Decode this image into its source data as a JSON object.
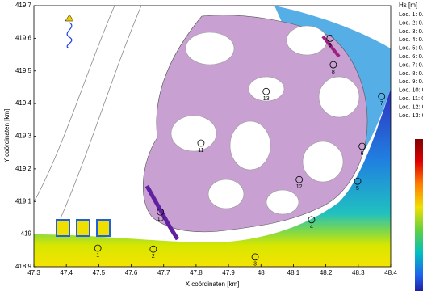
{
  "axes": {
    "xlabel": "X coördinaten [km]",
    "ylabel": "Y coördinaten [km]",
    "xlim": [
      47.3,
      48.4
    ],
    "ylim": [
      418.9,
      419.7
    ],
    "xticks": [
      47.3,
      47.4,
      47.5,
      47.6,
      47.7,
      47.8,
      47.9,
      48,
      48.1,
      48.2,
      48.3,
      48.4
    ],
    "yticks": [
      418.9,
      419,
      419.1,
      419.2,
      419.3,
      419.4,
      419.5,
      419.6,
      419.7
    ]
  },
  "locations": [
    {
      "label": "1",
      "x": 47.497,
      "y": 418.957
    },
    {
      "label": "2",
      "x": 47.668,
      "y": 418.954
    },
    {
      "label": "3",
      "x": 47.982,
      "y": 418.93
    },
    {
      "label": "4",
      "x": 48.156,
      "y": 419.044
    },
    {
      "label": "5",
      "x": 48.298,
      "y": 419.162
    },
    {
      "label": "6",
      "x": 48.312,
      "y": 419.269
    },
    {
      "label": "7",
      "x": 48.372,
      "y": 419.422
    },
    {
      "label": "8",
      "x": 48.223,
      "y": 419.519
    },
    {
      "label": "9",
      "x": 48.213,
      "y": 419.6
    },
    {
      "label": "10",
      "x": 47.69,
      "y": 419.068
    },
    {
      "label": "11",
      "x": 47.815,
      "y": 419.279
    },
    {
      "label": "12",
      "x": 48.118,
      "y": 419.167
    },
    {
      "label": "13",
      "x": 48.016,
      "y": 419.437
    }
  ],
  "legend": {
    "title": "Hs [m]",
    "entries": [
      "Loc. 1: 0.",
      "Loc. 2: 0.",
      "Loc. 3: 0.",
      "Loc. 4: 0.",
      "Loc. 5: 0.",
      "Loc. 6: 0.",
      "Loc. 7: 0.",
      "Loc. 8: 0.",
      "Loc. 9: 0.",
      "Loc. 10: 0",
      "Loc. 11: 0",
      "Loc. 12: 0",
      "Loc. 13: 0"
    ]
  }
}
